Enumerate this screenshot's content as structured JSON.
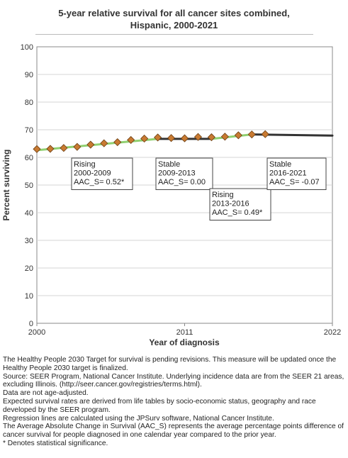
{
  "title_line1": "5-year relative survival for all cancer sites combined,",
  "title_line2": "Hispanic,  2000-2021",
  "chart_data": {
    "type": "line",
    "title": "5-year relative survival for all cancer sites combined, Hispanic,  2000-2021",
    "xlabel": "Year of diagnosis",
    "ylabel": "Percent surviving",
    "xlim": [
      2000,
      2022
    ],
    "ylim": [
      0,
      100
    ],
    "x_ticks": [
      "2000",
      "2011",
      "2022"
    ],
    "y_ticks": [
      "0",
      "10",
      "20",
      "30",
      "40",
      "50",
      "60",
      "70",
      "80",
      "90",
      "100"
    ],
    "grid": true,
    "observed": {
      "x": [
        2000,
        2001,
        2002,
        2003,
        2004,
        2005,
        2006,
        2007,
        2008,
        2009,
        2010,
        2011,
        2012,
        2013,
        2014,
        2015,
        2016,
        2017
      ],
      "y": [
        63.0,
        63.1,
        63.4,
        63.8,
        64.6,
        65.1,
        65.5,
        66.3,
        66.8,
        67.2,
        67.0,
        66.9,
        67.4,
        67.3,
        67.5,
        68.0,
        68.3,
        68.4
      ]
    },
    "trend_segments": [
      {
        "x": [
          2000,
          2009
        ],
        "y": [
          62.6,
          66.7
        ],
        "color": "#90d070"
      },
      {
        "x": [
          2009,
          2013
        ],
        "y": [
          66.7,
          66.7
        ],
        "color": "#333333"
      },
      {
        "x": [
          2013,
          2016
        ],
        "y": [
          66.7,
          68.3
        ],
        "color": "#90d070"
      },
      {
        "x": [
          2016,
          2022
        ],
        "y": [
          68.3,
          67.9
        ],
        "color": "#333333"
      }
    ],
    "marker_color": "#c87a32",
    "annotations": [
      {
        "lines": [
          "Rising",
          "2000-2009",
          "AAC_S=  0.52*"
        ]
      },
      {
        "lines": [
          "Stable",
          "2009-2013",
          "AAC_S= 0.00"
        ]
      },
      {
        "lines": [
          "Rising",
          "2013-2016",
          "AAC_S=  0.49*"
        ]
      },
      {
        "lines": [
          "Stable",
          "2016-2021",
          "AAC_S= -0.07"
        ]
      }
    ]
  },
  "notes": [
    "The Healthy People 2030 Target for survival is pending revisions. This measure will be updated once the Healthy People 2030 target is finalized.",
    "Source: SEER Program, National Cancer Institute. Underlying incidence data are from the SEER 21 areas, excluding Illinois. (http://seer.cancer.gov/registries/terms.html).",
    "Data are not age-adjusted.",
    "Expected survival rates are derived from life tables by socio-economic status, geography and race developed by the SEER program.",
    "Regression lines are calculated using the JPSurv software, National Cancer Institute.",
    "The Average Absolute Change in Survival (AAC_S) represents the average percentage points difference of cancer survival for people diagnosed in one calendar year compared to the prior year.",
    "* Denotes statistical significance."
  ]
}
